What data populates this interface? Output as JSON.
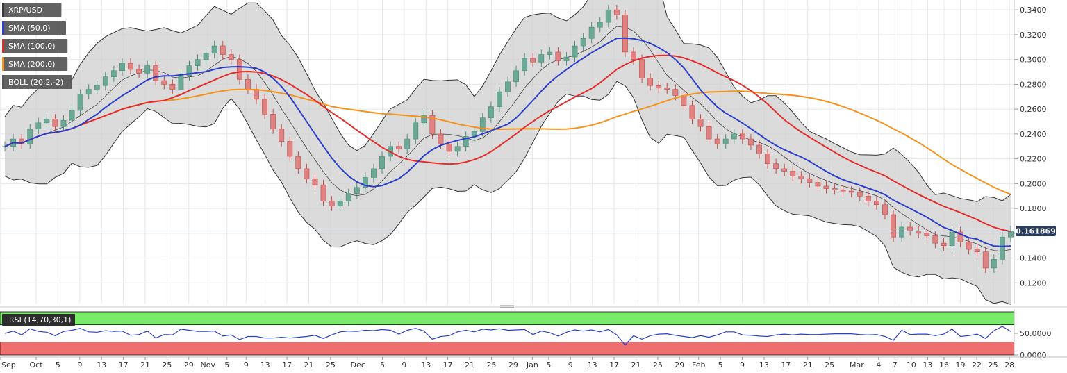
{
  "chart_data": [
    {
      "type": "candlestick",
      "title": "XRP/USD",
      "legend": [
        "XRP/USD",
        "SMA (50,0)",
        "SMA (100,0)",
        "SMA (200,0)",
        "BOLL (20,2,-2)"
      ],
      "legend_colors": [
        "#3a3a3a",
        "#2a3ec9",
        "#e32b2b",
        "#f5921e",
        "#555555"
      ],
      "y_ticks": [
        "0.3400",
        "0.3200",
        "0.3000",
        "0.2800",
        "0.2600",
        "0.2400",
        "0.2200",
        "0.2000",
        "0.1800",
        "0.1600",
        "0.1400",
        "0.1200"
      ],
      "y_tick_values": [
        0.34,
        0.32,
        0.3,
        0.28,
        0.26,
        0.24,
        0.22,
        0.2,
        0.18,
        0.16,
        0.14,
        0.12
      ],
      "ylim": [
        0.1034,
        0.3457
      ],
      "x_labels": [
        "Sep",
        "Oct",
        "5",
        "9",
        "13",
        "17",
        "21",
        "25",
        "29",
        "Nov",
        "5",
        "9",
        "13",
        "17",
        "21",
        "25",
        "Dec",
        "5",
        "9",
        "13",
        "17",
        "21",
        "25",
        "29",
        "Jan",
        "5",
        "9",
        "13",
        "17",
        "21",
        "25",
        "29",
        "Feb",
        "5",
        "9",
        "13",
        "17",
        "21",
        "25",
        "Mar",
        "4",
        "7",
        "10",
        "13",
        "16",
        "19",
        "22",
        "25",
        "28"
      ],
      "x_label_index": [
        0,
        13,
        21,
        29,
        37,
        45,
        53,
        61,
        69,
        76,
        83,
        90,
        97,
        105,
        113,
        121,
        131,
        140,
        148,
        156,
        164,
        172,
        180,
        188,
        195,
        201,
        209,
        217,
        225,
        233,
        241,
        249,
        256,
        264,
        272,
        280,
        288,
        296,
        304,
        314,
        322,
        328,
        334,
        340,
        346,
        352,
        358,
        364,
        370
      ],
      "last_price": "0.161869",
      "last_price_value": 0.161869,
      "closes": [
        0.23,
        0.236,
        0.232,
        0.244,
        0.249,
        0.252,
        0.246,
        0.251,
        0.259,
        0.272,
        0.276,
        0.279,
        0.286,
        0.291,
        0.297,
        0.292,
        0.289,
        0.295,
        0.283,
        0.28,
        0.276,
        0.287,
        0.295,
        0.3,
        0.305,
        0.311,
        0.304,
        0.3,
        0.284,
        0.276,
        0.268,
        0.256,
        0.244,
        0.234,
        0.222,
        0.212,
        0.204,
        0.199,
        0.186,
        0.182,
        0.186,
        0.192,
        0.197,
        0.205,
        0.212,
        0.222,
        0.23,
        0.228,
        0.236,
        0.249,
        0.255,
        0.24,
        0.232,
        0.226,
        0.23,
        0.238,
        0.242,
        0.253,
        0.262,
        0.274,
        0.282,
        0.291,
        0.301,
        0.298,
        0.304,
        0.306,
        0.299,
        0.302,
        0.311,
        0.317,
        0.326,
        0.33,
        0.34,
        0.336,
        0.306,
        0.3,
        0.285,
        0.279,
        0.277,
        0.276,
        0.271,
        0.263,
        0.252,
        0.246,
        0.236,
        0.232,
        0.236,
        0.24,
        0.236,
        0.231,
        0.224,
        0.216,
        0.212,
        0.21,
        0.206,
        0.204,
        0.201,
        0.198,
        0.196,
        0.195,
        0.194,
        0.193,
        0.19,
        0.186,
        0.183,
        0.175,
        0.157,
        0.165,
        0.162,
        0.16,
        0.158,
        0.152,
        0.15,
        0.161,
        0.153,
        0.147,
        0.145,
        0.132,
        0.139,
        0.157,
        0.162
      ]
    },
    {
      "type": "line",
      "title": "RSI (14,70,30,1)",
      "y_ticks": [
        "50.0000",
        "0.0000"
      ],
      "y_tick_values": [
        50,
        0
      ],
      "ylim": [
        0,
        100
      ],
      "overbought": 70,
      "oversold": 30,
      "colors": {
        "overbought_zone": "#7aea6a",
        "oversold_zone": "#ef6e6e",
        "line": "#2a3ec9"
      }
    }
  ]
}
